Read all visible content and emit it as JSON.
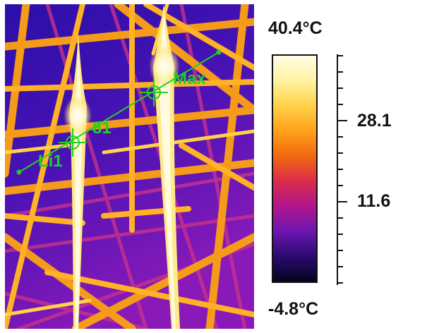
{
  "scale": {
    "max_label": "40.4°C",
    "min_label": "-4.8°C",
    "ticks": [
      "28.1",
      "11.6"
    ],
    "colors": [
      "#fffde8",
      "#fff3a0",
      "#ffd24a",
      "#ffa31a",
      "#f26b0f",
      "#d92a4e",
      "#b0158f",
      "#6a16b0",
      "#2a0a6e",
      "#06041c"
    ]
  },
  "overlay": {
    "line_label": "Li1",
    "spot_label": "81",
    "max_label": "Max",
    "color": "#22d022"
  }
}
